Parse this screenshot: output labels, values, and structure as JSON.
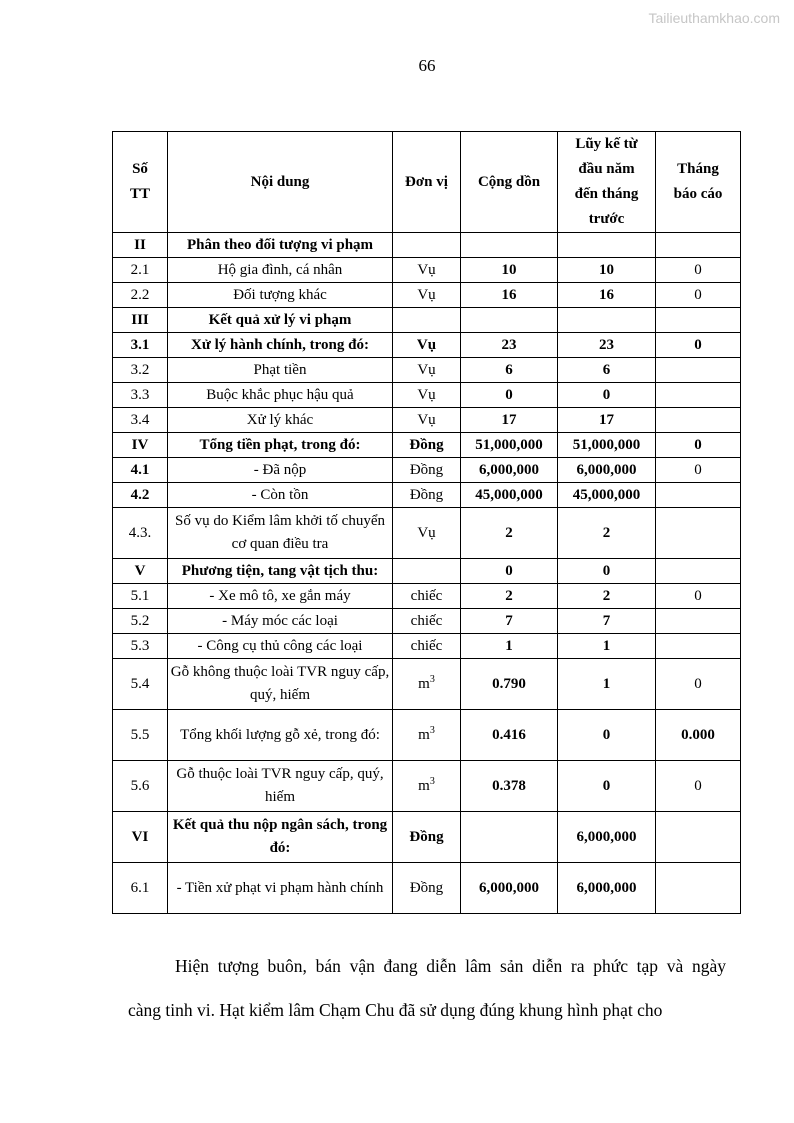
{
  "page": {
    "number": "66"
  },
  "watermark": {
    "text": "Tailieuthamkhao.com"
  },
  "table": {
    "headers": [
      "Số\nTT",
      "Nội dung",
      "Đơn vị",
      "Cộng dồn",
      "Lũy kế từ\nđầu năm\nđến tháng\ntrước",
      "Tháng\nbáo cáo"
    ],
    "rows": [
      {
        "tall": false,
        "cells": [
          {
            "t": "II",
            "b": true
          },
          {
            "t": "Phân theo đối tượng vi phạm",
            "b": true
          },
          {
            "t": "",
            "b": false
          },
          {
            "t": "",
            "b": false
          },
          {
            "t": "",
            "b": false
          },
          {
            "t": "",
            "b": false
          }
        ]
      },
      {
        "tall": false,
        "cells": [
          {
            "t": "2.1",
            "b": false
          },
          {
            "t": "Hộ gia đình, cá nhân",
            "b": false
          },
          {
            "t": "Vụ",
            "b": false
          },
          {
            "t": "10",
            "b": true
          },
          {
            "t": "10",
            "b": true
          },
          {
            "t": "0",
            "b": false
          }
        ]
      },
      {
        "tall": false,
        "cells": [
          {
            "t": "2.2",
            "b": false
          },
          {
            "t": "Đối tượng khác",
            "b": false
          },
          {
            "t": "Vụ",
            "b": false
          },
          {
            "t": "16",
            "b": true
          },
          {
            "t": "16",
            "b": true
          },
          {
            "t": "0",
            "b": false
          }
        ]
      },
      {
        "tall": false,
        "cells": [
          {
            "t": "III",
            "b": true
          },
          {
            "t": "Kết quả xử lý vi phạm",
            "b": true
          },
          {
            "t": "",
            "b": false
          },
          {
            "t": "",
            "b": false
          },
          {
            "t": "",
            "b": false
          },
          {
            "t": "",
            "b": false
          }
        ]
      },
      {
        "tall": false,
        "cells": [
          {
            "t": "3.1",
            "b": true
          },
          {
            "t": "Xử lý hành chính, trong đó:",
            "b": true
          },
          {
            "t": "Vụ",
            "b": true
          },
          {
            "t": "23",
            "b": true
          },
          {
            "t": "23",
            "b": true
          },
          {
            "t": "0",
            "b": true
          }
        ]
      },
      {
        "tall": false,
        "cells": [
          {
            "t": "3.2",
            "b": false
          },
          {
            "t": "Phạt tiền",
            "b": false
          },
          {
            "t": "Vụ",
            "b": false
          },
          {
            "t": "6",
            "b": true
          },
          {
            "t": "6",
            "b": true
          },
          {
            "t": "",
            "b": false
          }
        ]
      },
      {
        "tall": false,
        "cells": [
          {
            "t": "3.3",
            "b": false
          },
          {
            "t": "Buộc khắc phục hậu quả",
            "b": false
          },
          {
            "t": "Vụ",
            "b": false
          },
          {
            "t": "0",
            "b": true
          },
          {
            "t": "0",
            "b": true
          },
          {
            "t": "",
            "b": false
          }
        ]
      },
      {
        "tall": false,
        "cells": [
          {
            "t": "3.4",
            "b": false
          },
          {
            "t": "Xử lý khác",
            "b": false
          },
          {
            "t": "Vụ",
            "b": false
          },
          {
            "t": "17",
            "b": true
          },
          {
            "t": "17",
            "b": true
          },
          {
            "t": "",
            "b": false
          }
        ]
      },
      {
        "tall": false,
        "cells": [
          {
            "t": "IV",
            "b": true
          },
          {
            "t": "Tổng tiền phạt, trong đó:",
            "b": true
          },
          {
            "t": "Đồng",
            "b": true
          },
          {
            "t": "51,000,000",
            "b": true
          },
          {
            "t": "51,000,000",
            "b": true
          },
          {
            "t": "0",
            "b": true
          }
        ]
      },
      {
        "tall": false,
        "cells": [
          {
            "t": "4.1",
            "b": true
          },
          {
            "t": "- Đã nộp",
            "b": false
          },
          {
            "t": "Đồng",
            "b": false
          },
          {
            "t": "6,000,000",
            "b": true
          },
          {
            "t": "6,000,000",
            "b": true
          },
          {
            "t": "0",
            "b": false
          }
        ]
      },
      {
        "tall": false,
        "cells": [
          {
            "t": "4.2",
            "b": true
          },
          {
            "t": "- Còn tồn",
            "b": false
          },
          {
            "t": "Đồng",
            "b": false
          },
          {
            "t": "45,000,000",
            "b": true
          },
          {
            "t": "45,000,000",
            "b": true
          },
          {
            "t": "",
            "b": false
          }
        ]
      },
      {
        "tall": true,
        "cells": [
          {
            "t": "4.3.",
            "b": false
          },
          {
            "t": "Số vụ do Kiểm lâm khởi tố chuyển cơ quan điều tra",
            "b": false
          },
          {
            "t": "Vụ",
            "b": false
          },
          {
            "t": "2",
            "b": true
          },
          {
            "t": "2",
            "b": true
          },
          {
            "t": "",
            "b": false
          }
        ]
      },
      {
        "tall": false,
        "cells": [
          {
            "t": "V",
            "b": true
          },
          {
            "t": "Phương tiện, tang vật tịch thu:",
            "b": true
          },
          {
            "t": "",
            "b": false
          },
          {
            "t": "0",
            "b": true
          },
          {
            "t": "0",
            "b": true
          },
          {
            "t": "",
            "b": false
          }
        ]
      },
      {
        "tall": false,
        "cells": [
          {
            "t": "5.1",
            "b": false
          },
          {
            "t": "- Xe mô tô, xe gắn máy",
            "b": false
          },
          {
            "t": "chiếc",
            "b": false
          },
          {
            "t": "2",
            "b": true
          },
          {
            "t": "2",
            "b": true
          },
          {
            "t": "0",
            "b": false
          }
        ]
      },
      {
        "tall": false,
        "cells": [
          {
            "t": "5.2",
            "b": false
          },
          {
            "t": "- Máy móc các loại",
            "b": false
          },
          {
            "t": "chiếc",
            "b": false
          },
          {
            "t": "7",
            "b": true
          },
          {
            "t": "7",
            "b": true
          },
          {
            "t": "",
            "b": false
          }
        ]
      },
      {
        "tall": false,
        "cells": [
          {
            "t": "5.3",
            "b": false
          },
          {
            "t": "- Công cụ thủ công các loại",
            "b": false
          },
          {
            "t": "chiếc",
            "b": false
          },
          {
            "t": "1",
            "b": true
          },
          {
            "t": "1",
            "b": true
          },
          {
            "t": "",
            "b": false
          }
        ]
      },
      {
        "tall": true,
        "cells": [
          {
            "t": "5.4",
            "b": false
          },
          {
            "t": "Gỗ không thuộc loài TVR nguy cấp, quý, hiếm",
            "b": false
          },
          {
            "t": "m",
            "sup": "3",
            "b": false
          },
          {
            "t": "0.790",
            "b": true
          },
          {
            "t": "1",
            "b": true
          },
          {
            "t": "0",
            "b": false
          }
        ]
      },
      {
        "tall": true,
        "cells": [
          {
            "t": "5.5",
            "b": false
          },
          {
            "t": "Tổng khối lượng gỗ xẻ, trong đó:",
            "b": false
          },
          {
            "t": "m",
            "sup": "3",
            "b": false
          },
          {
            "t": "0.416",
            "b": true
          },
          {
            "t": "0",
            "b": true
          },
          {
            "t": "0.000",
            "b": true
          }
        ]
      },
      {
        "tall": true,
        "cells": [
          {
            "t": "5.6",
            "b": false
          },
          {
            "t": "Gỗ thuộc loài TVR nguy cấp, quý, hiếm",
            "b": false
          },
          {
            "t": "m",
            "sup": "3",
            "b": false
          },
          {
            "t": "0.378",
            "b": true
          },
          {
            "t": "0",
            "b": true
          },
          {
            "t": "0",
            "b": false
          }
        ]
      },
      {
        "tall": true,
        "cells": [
          {
            "t": "VI",
            "b": true
          },
          {
            "t": "Kết quả thu nộp ngân sách, trong đó:",
            "b": true
          },
          {
            "t": "Đồng",
            "b": true
          },
          {
            "t": "",
            "b": false
          },
          {
            "t": "6,000,000",
            "b": true
          },
          {
            "t": "",
            "b": false
          }
        ]
      },
      {
        "tall": true,
        "cells": [
          {
            "t": "6.1",
            "b": false
          },
          {
            "t": "- Tiền xử phạt vi phạm hành chính",
            "b": false
          },
          {
            "t": "Đồng",
            "b": false
          },
          {
            "t": "6,000,000",
            "b": true
          },
          {
            "t": "6,000,000",
            "b": true
          },
          {
            "t": "",
            "b": false
          }
        ]
      }
    ]
  },
  "paragraph": {
    "lines": [
      "Hiện tượng buôn, bán vận đang diễn lâm sản diễn ra phức tạp và ngày",
      "càng tinh vi. Hạt kiểm lâm Chạm Chu đã sử dụng đúng khung hình phạt cho"
    ]
  }
}
